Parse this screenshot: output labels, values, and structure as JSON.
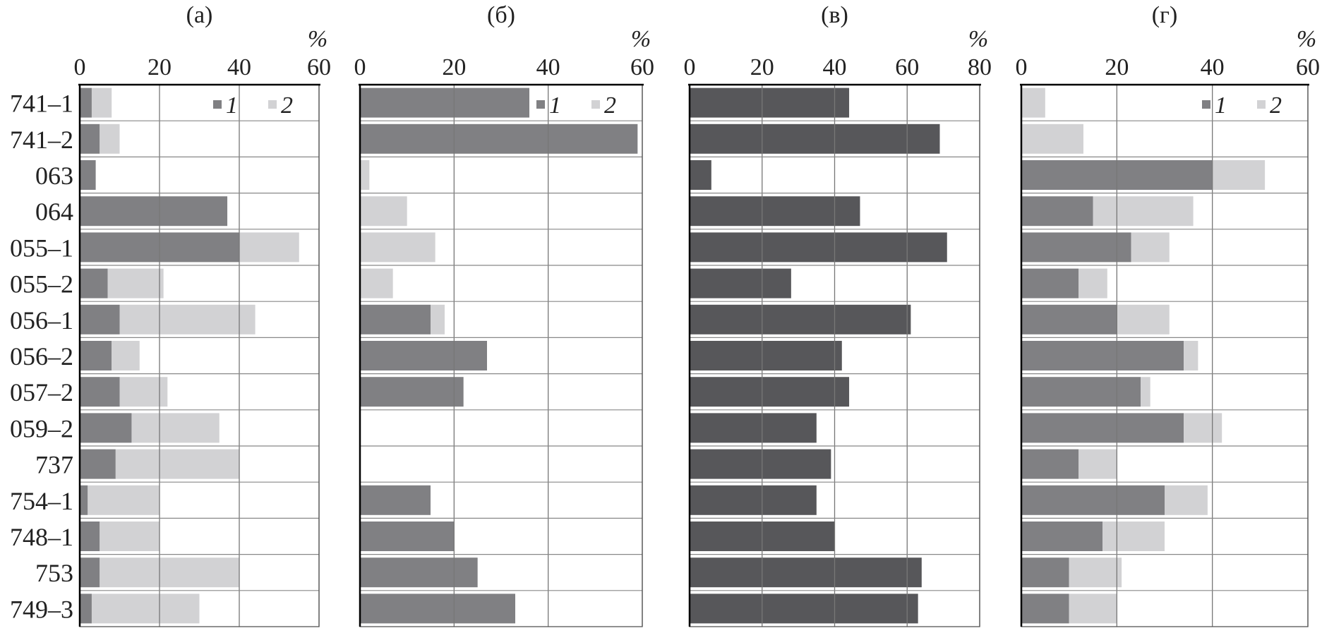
{
  "chart_data": {
    "type": "bar",
    "stacked": true,
    "orientation": "horizontal",
    "colors": {
      "1": "#808083",
      "2": "#d2d2d4",
      "dark": "#57575a"
    },
    "categories": [
      "741–1",
      "741–2",
      "063",
      "064",
      "055–1",
      "055–2",
      "056–1",
      "056–2",
      "057–2",
      "059–2",
      "737",
      "754–1",
      "748–1",
      "753",
      "749–3"
    ],
    "panels": [
      {
        "title": "(а)",
        "unit_label": "%",
        "xlim": [
          0,
          60
        ],
        "ticks": [
          0,
          20,
          40,
          60
        ],
        "grid": true,
        "legend": {
          "position": "top-right",
          "entries": [
            "1",
            "2"
          ]
        },
        "series": [
          {
            "name": "1",
            "values": [
              3,
              5,
              4,
              37,
              40,
              7,
              10,
              8,
              10,
              13,
              9,
              2,
              5,
              5,
              3
            ]
          },
          {
            "name": "2",
            "values": [
              5,
              5,
              0,
              0,
              15,
              14,
              34,
              7,
              12,
              22,
              31,
              18,
              15,
              35,
              27
            ]
          }
        ]
      },
      {
        "title": "(б)",
        "unit_label": "%",
        "xlim": [
          0,
          60
        ],
        "ticks": [
          0,
          20,
          40,
          60
        ],
        "grid": true,
        "legend": {
          "position": "top-right",
          "entries": [
            "1",
            "2"
          ]
        },
        "series": [
          {
            "name": "1",
            "values": [
              36,
              59,
              0,
              0,
              0,
              0,
              15,
              27,
              22,
              0,
              0,
              15,
              20,
              25,
              33
            ]
          },
          {
            "name": "2",
            "values": [
              0,
              0,
              2,
              10,
              16,
              7,
              3,
              0,
              0,
              0,
              0,
              0,
              0,
              0,
              0
            ]
          }
        ]
      },
      {
        "title": "(в)",
        "unit_label": "%",
        "xlim": [
          0,
          80
        ],
        "ticks": [
          0,
          20,
          40,
          60,
          80
        ],
        "grid": true,
        "legend": null,
        "series": [
          {
            "values": [
              44,
              69,
              6,
              47,
              71,
              28,
              61,
              42,
              44,
              35,
              39,
              35,
              40,
              64,
              63
            ]
          }
        ]
      },
      {
        "title": "(г)",
        "unit_label": "%",
        "xlim": [
          0,
          60
        ],
        "ticks": [
          0,
          20,
          40,
          60
        ],
        "grid": true,
        "legend": {
          "position": "top-right",
          "entries": [
            "1",
            "2"
          ]
        },
        "series": [
          {
            "name": "1",
            "values": [
              0,
              0,
              40,
              15,
              23,
              12,
              20,
              34,
              25,
              34,
              12,
              30,
              17,
              10,
              10
            ]
          },
          {
            "name": "2",
            "values": [
              5,
              13,
              11,
              21,
              8,
              6,
              11,
              3,
              2,
              8,
              8,
              9,
              13,
              11,
              10
            ]
          }
        ]
      }
    ]
  }
}
